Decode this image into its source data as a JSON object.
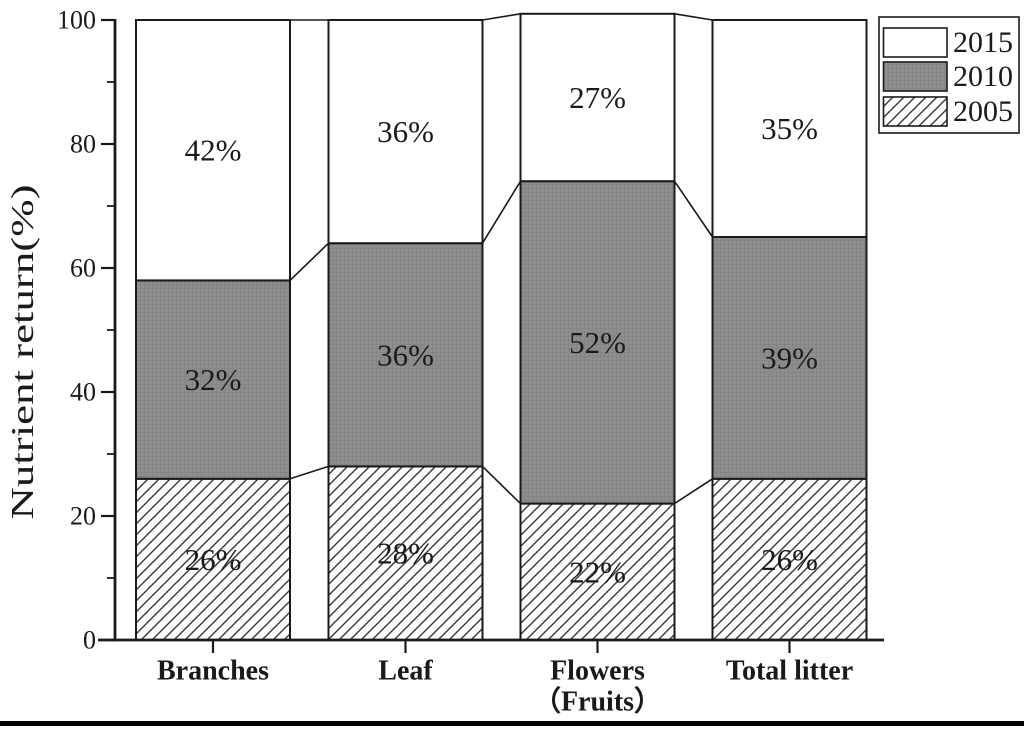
{
  "figure": {
    "background": "#ffffff",
    "bottom_rule_color": "#000000"
  },
  "chart_data": {
    "type": "bar",
    "stacked": true,
    "title": "",
    "xlabel": "",
    "ylabel": "Nutrient return(%)",
    "ylim": [
      0,
      100
    ],
    "yticks_major": [
      0,
      20,
      40,
      60,
      80,
      100
    ],
    "yticks_minor": [
      10,
      30,
      50,
      70,
      90
    ],
    "grid": false,
    "categories": [
      [
        "Branches"
      ],
      [
        "Leaf"
      ],
      [
        "Flowers",
        "（Fruits）"
      ],
      [
        "Total litter"
      ]
    ],
    "series": [
      {
        "name": "2005",
        "style": "hatch",
        "values": [
          26,
          28,
          22,
          26
        ]
      },
      {
        "name": "2010",
        "style": "gray",
        "values": [
          32,
          36,
          52,
          39
        ]
      },
      {
        "name": "2015",
        "style": "white",
        "values": [
          42,
          36,
          27,
          35
        ]
      }
    ],
    "value_suffix": "%",
    "connector_lines": true,
    "legend": {
      "position": "top-right",
      "entries": [
        {
          "label": "2015",
          "style": "white"
        },
        {
          "label": "2010",
          "style": "gray"
        },
        {
          "label": "2005",
          "style": "hatch"
        }
      ]
    },
    "colors": {
      "gray_fill": "#8e8e8e",
      "gray_grid": "#838383",
      "white_fill": "#ffffff",
      "hatch_line": "#3f3f3f",
      "line": "#1a1a1a",
      "text": "#1a1a1a"
    }
  }
}
